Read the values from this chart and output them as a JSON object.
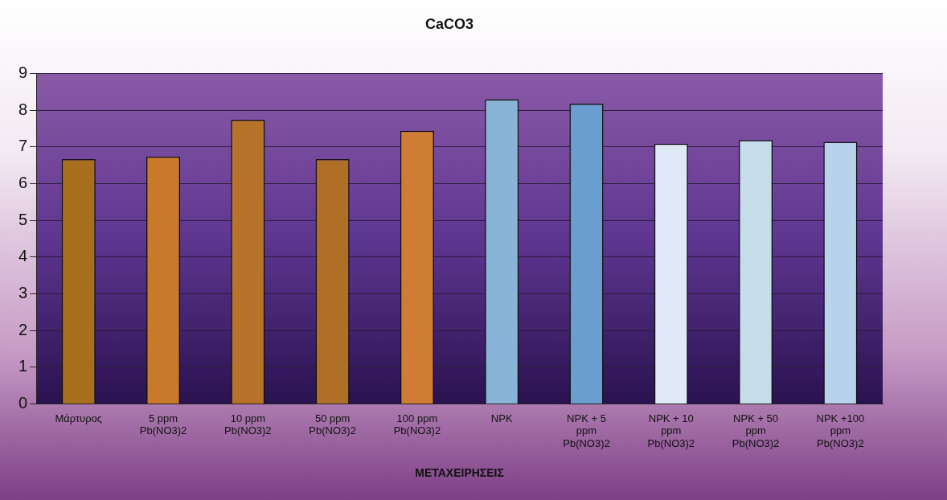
{
  "chart_data": {
    "type": "bar",
    "title": "CaCO3",
    "xlabel": "ΜΕΤΑΧΕΙΡΗΣΕΙΣ",
    "categories": [
      "Μάρτυρος",
      "5 ppm Pb(NO3)2",
      "10 ppm Pb(NO3)2",
      "50 ppm Pb(NO3)2",
      "100 ppm Pb(NO3)2",
      "NPK",
      "NPK + 5 ppm Pb(NO3)2",
      "NPK + 10 ppm Pb(NO3)2",
      "NPK + 50 ppm Pb(NO3)2",
      "NPK +100 ppm Pb(NO3)2"
    ],
    "values": [
      6.67,
      6.74,
      7.74,
      6.67,
      7.44,
      8.3,
      8.18,
      7.09,
      7.19,
      7.14
    ],
    "colors": [
      "#a8701e",
      "#c9792a",
      "#b8732a",
      "#b06f26",
      "#d07c34",
      "#8ab4d6",
      "#6a9ed0",
      "#dfeaf6",
      "#c4dde8",
      "#b7d2ea"
    ],
    "ylim": [
      0,
      9
    ],
    "yticks": [
      0,
      1,
      2,
      3,
      4,
      5,
      6,
      7,
      8,
      9
    ],
    "grid": "y",
    "legend": false
  }
}
